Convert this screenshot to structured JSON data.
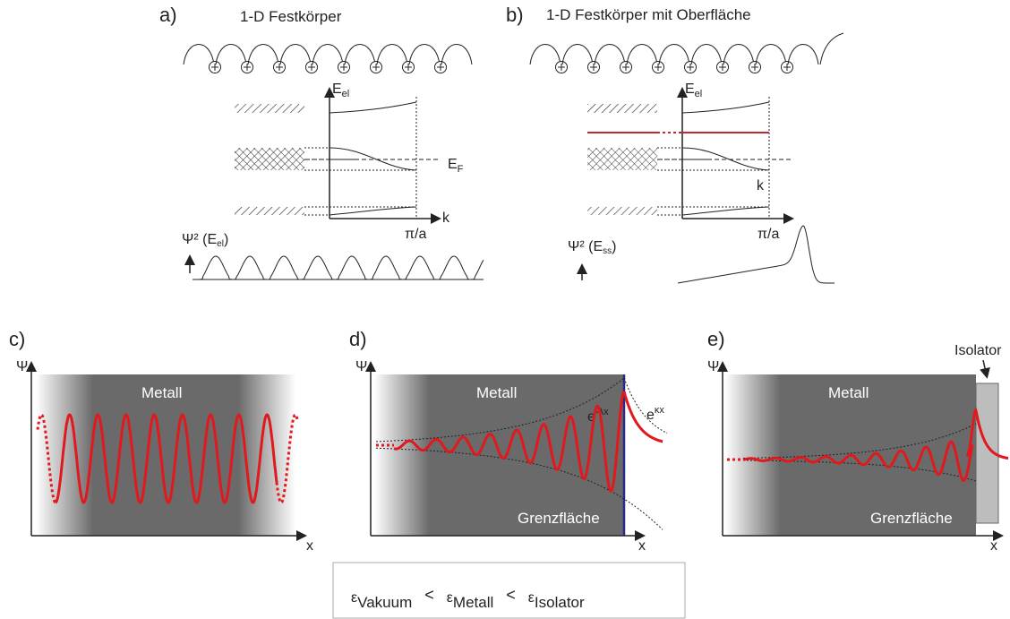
{
  "panels": {
    "a": {
      "label": "a)",
      "title": "1-D Festkörper",
      "energy": {
        "symbol": "E",
        "sub": "el"
      },
      "fermi": {
        "symbol": "E",
        "sub": "F"
      },
      "k_axis": "k",
      "zone_edge": "π/a",
      "psi": {
        "pre": "Ψ² (E",
        "sub": "el",
        "post": ")"
      }
    },
    "b": {
      "label": "b)",
      "title": "1-D Festkörper mit Oberfläche",
      "energy": {
        "symbol": "E",
        "sub": "el"
      },
      "k_axis": "k",
      "zone_edge": "π/a",
      "psi": {
        "pre": "Ψ² (E",
        "sub": "ss",
        "post": ")"
      }
    },
    "c": {
      "label": "c)",
      "y_axis": "Ψ",
      "x_axis": "x",
      "region": "Metall"
    },
    "d": {
      "label": "d)",
      "y_axis": "Ψ",
      "x_axis": "x",
      "region": "Metall",
      "interface": "Grenzfläche",
      "decay": {
        "base": "e",
        "sup": "-λx"
      },
      "growth": {
        "base": "e",
        "sup": "κx"
      }
    },
    "e": {
      "label": "e)",
      "y_axis": "Ψ",
      "x_axis": "x",
      "region": "Metall",
      "interface": "Grenzfläche",
      "insulator": "Isolator"
    }
  },
  "inequality": {
    "terms": [
      {
        "symbol": "ε",
        "sub": "Vakuum"
      },
      {
        "symbol": "ε",
        "sub": "Metall"
      },
      {
        "symbol": "ε",
        "sub": "Isolator"
      }
    ],
    "operators": [
      "<",
      "<"
    ]
  }
}
